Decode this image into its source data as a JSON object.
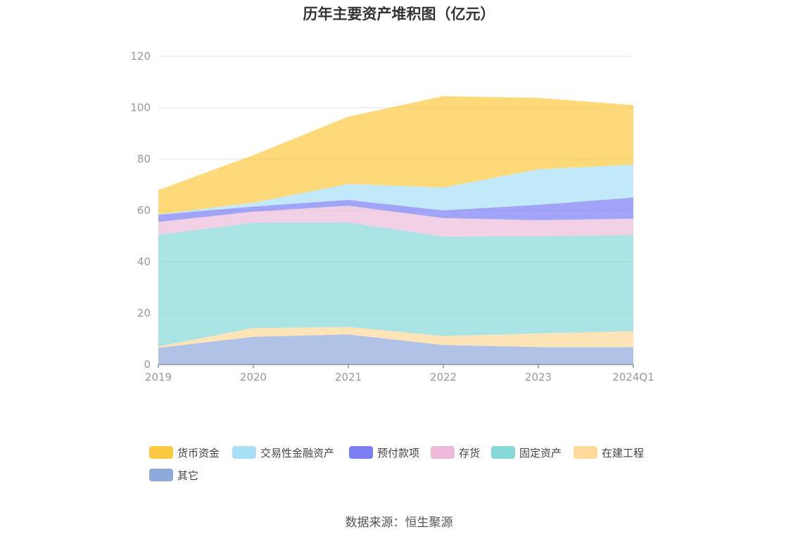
{
  "chart_data": {
    "type": "area",
    "title": "历年主要资产堆积图（亿元）",
    "stacked": true,
    "categories": [
      "2019",
      "2020",
      "2021",
      "2022",
      "2023",
      "2024Q1"
    ],
    "ylim": [
      0,
      120
    ],
    "yticks": [
      0,
      20,
      40,
      60,
      80,
      100,
      120
    ],
    "grid": true,
    "legend_position": "bottom",
    "series": [
      {
        "name": "其它",
        "color": "#8eaadb",
        "values": [
          6.5,
          10.8,
          11.7,
          7.6,
          6.8,
          6.8
        ]
      },
      {
        "name": "在建工程",
        "color": "#ffd99a",
        "values": [
          0.5,
          3.4,
          2.9,
          3.5,
          5.3,
          6.2
        ]
      },
      {
        "name": "固定资产",
        "color": "#86d7d7",
        "values": [
          43.5,
          41.0,
          40.7,
          38.7,
          37.8,
          37.4
        ]
      },
      {
        "name": "存货",
        "color": "#ebbad8",
        "values": [
          5.0,
          4.3,
          6.5,
          7.2,
          6.3,
          6.4
        ]
      },
      {
        "name": "预付款项",
        "color": "#7b7ff3",
        "values": [
          2.8,
          2.0,
          2.3,
          3.0,
          6.0,
          8.2
        ]
      },
      {
        "name": "交易性金融资产",
        "color": "#a8dff7",
        "values": [
          0.2,
          1.5,
          6.2,
          8.9,
          13.8,
          12.8
        ]
      },
      {
        "name": "货币资金",
        "color": "#fcc940",
        "values": [
          9.4,
          18.5,
          26.2,
          35.6,
          27.8,
          23.2
        ]
      }
    ]
  },
  "legend": {
    "items": [
      {
        "label": "货币资金",
        "color": "#fcc940"
      },
      {
        "label": "交易性金融资产",
        "color": "#a8dff7"
      },
      {
        "label": "预付款项",
        "color": "#7b7ff3"
      },
      {
        "label": "存货",
        "color": "#ebbad8"
      },
      {
        "label": "固定资产",
        "color": "#86d7d7"
      },
      {
        "label": "在建工程",
        "color": "#ffd99a"
      },
      {
        "label": "其它",
        "color": "#8eaadb"
      }
    ]
  },
  "footer": {
    "source": "数据来源：恒生聚源"
  }
}
